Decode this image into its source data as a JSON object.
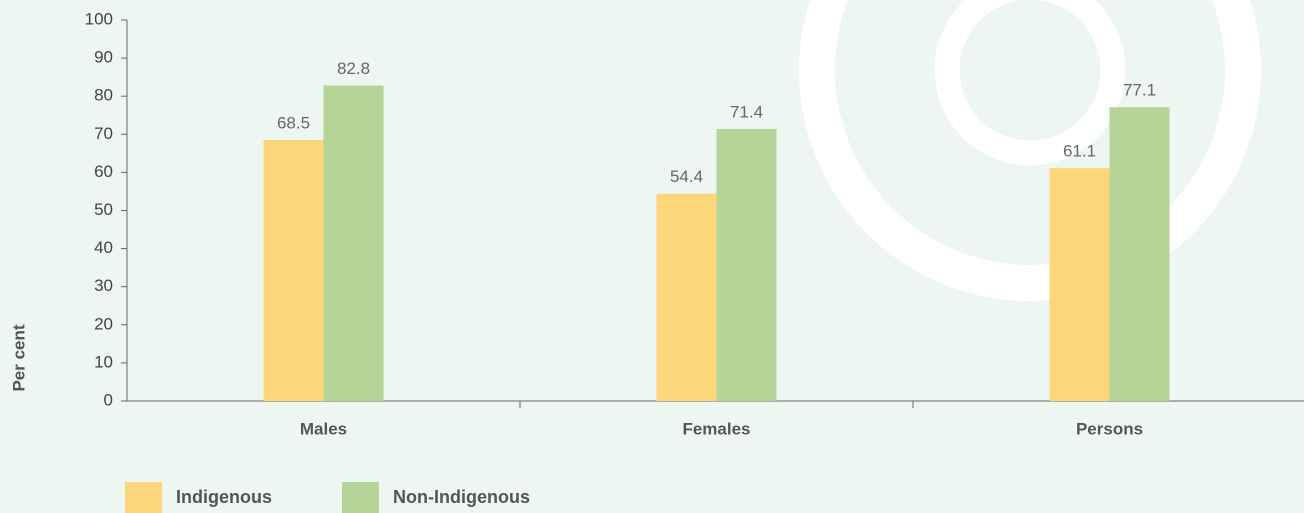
{
  "chart_data": {
    "type": "bar",
    "y_label": "Per cent",
    "categories": [
      "Males",
      "Females",
      "Persons"
    ],
    "series": [
      {
        "name": "Indigenous",
        "color": "#fdd67c",
        "values": [
          68.5,
          54.4,
          61.1
        ]
      },
      {
        "name": "Non-Indigenous",
        "color": "#b6d498",
        "values": [
          82.8,
          71.4,
          77.1
        ]
      }
    ],
    "ylim": [
      0,
      100
    ],
    "yticks": [
      0,
      10,
      20,
      30,
      40,
      50,
      60,
      70,
      80,
      90,
      100
    ],
    "legend": "bottom-left"
  }
}
